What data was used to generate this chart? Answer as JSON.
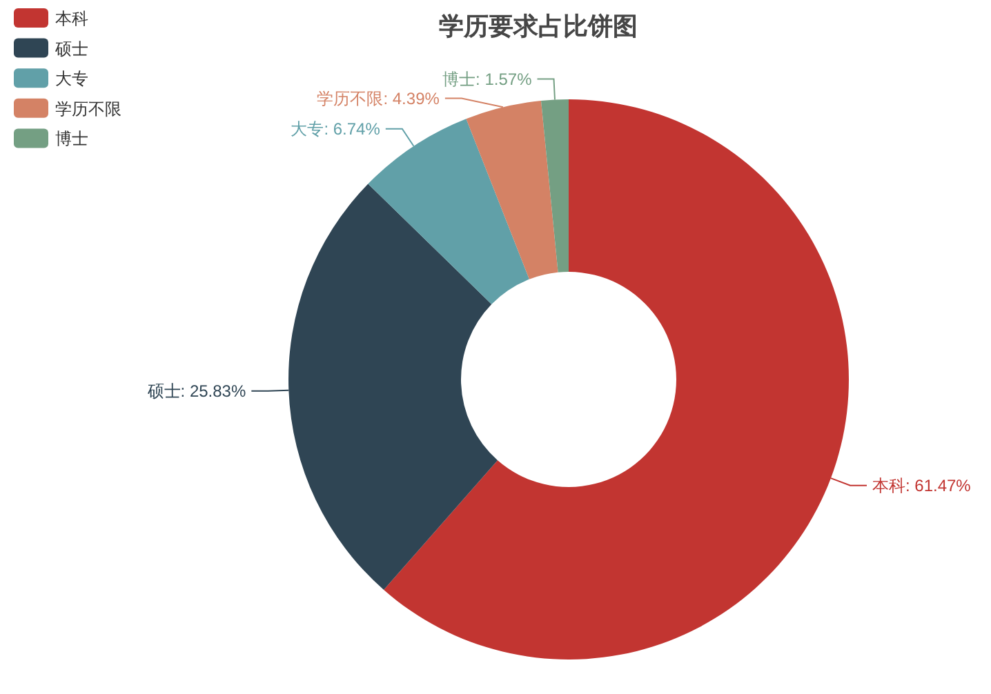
{
  "chart_data": {
    "type": "donut",
    "title": "学历要求占比饼图",
    "categories": [
      "本科",
      "硕士",
      "大专",
      "学历不限",
      "博士"
    ],
    "values": [
      61.47,
      25.83,
      6.74,
      4.39,
      1.57
    ],
    "colors": [
      "#c23531",
      "#2f4554",
      "#61a0a8",
      "#d48265",
      "#749f83"
    ],
    "value_labels": [
      "本科: 61.47%",
      "硕士: 25.83%",
      "大专: 6.74%",
      "学历不限: 4.39%",
      "博士: 1.57%"
    ],
    "legend": "top left"
  }
}
